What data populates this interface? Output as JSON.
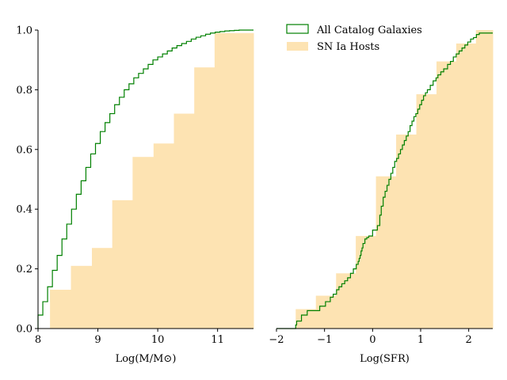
{
  "chart_data": [
    {
      "type": "histogram-cdf",
      "xlabel": "Log(M/M⊙)",
      "ylabel": "",
      "xlim": [
        8.0,
        11.6
      ],
      "ylim": [
        0.0,
        1.0
      ],
      "xticks": [
        "8",
        "9",
        "10",
        "11"
      ],
      "xtick_values": [
        8,
        9,
        10,
        11
      ],
      "yticks": [
        "0.0",
        "0.2",
        "0.4",
        "0.6",
        "0.8",
        "1.0"
      ],
      "ytick_values": [
        0.0,
        0.2,
        0.4,
        0.6,
        0.8,
        1.0
      ],
      "grid": false,
      "series": [
        {
          "name": "SN Ia Hosts",
          "style": "filled-bars",
          "color": "#fde3b2",
          "edges": [
            8.2,
            8.55,
            8.9,
            9.24,
            9.58,
            9.93,
            10.27,
            10.61,
            10.95,
            11.6
          ],
          "values": [
            0.13,
            0.21,
            0.27,
            0.43,
            0.575,
            0.62,
            0.72,
            0.875,
            0.99
          ]
        },
        {
          "name": "All Catalog Galaxies",
          "style": "step",
          "color": "#008000",
          "x": [
            8.0,
            8.08,
            8.16,
            8.24,
            8.32,
            8.4,
            8.48,
            8.56,
            8.64,
            8.72,
            8.8,
            8.88,
            8.96,
            9.04,
            9.12,
            9.2,
            9.28,
            9.36,
            9.44,
            9.52,
            9.6,
            9.68,
            9.76,
            9.84,
            9.92,
            10.0,
            10.08,
            10.16,
            10.24,
            10.32,
            10.4,
            10.48,
            10.56,
            10.64,
            10.72,
            10.8,
            10.88,
            10.96,
            11.04,
            11.12,
            11.2,
            11.28,
            11.36,
            11.44,
            11.52,
            11.6
          ],
          "y": [
            0.045,
            0.09,
            0.14,
            0.195,
            0.245,
            0.3,
            0.35,
            0.4,
            0.45,
            0.495,
            0.54,
            0.585,
            0.62,
            0.66,
            0.69,
            0.72,
            0.75,
            0.775,
            0.8,
            0.82,
            0.84,
            0.855,
            0.87,
            0.885,
            0.9,
            0.91,
            0.92,
            0.93,
            0.94,
            0.948,
            0.955,
            0.962,
            0.97,
            0.976,
            0.981,
            0.986,
            0.99,
            0.993,
            0.995,
            0.997,
            0.998,
            0.999,
            1.0,
            1.0,
            1.0,
            1.0
          ]
        }
      ]
    },
    {
      "type": "histogram-cdf",
      "xlabel": "Log(SFR)",
      "ylabel": "",
      "xlim": [
        -2.0,
        2.5
      ],
      "ylim": [
        0.0,
        1.0
      ],
      "xticks": [
        "−2",
        "−1",
        "0",
        "1",
        "2"
      ],
      "xtick_values": [
        -2,
        -1,
        0,
        1,
        2
      ],
      "grid": false,
      "legend": {
        "position": "top-left",
        "entries": [
          "All Catalog Galaxies",
          "SN Ia Hosts"
        ]
      },
      "series": [
        {
          "name": "SN Ia Hosts",
          "style": "filled-bars",
          "color": "#fde3b2",
          "edges": [
            -1.6,
            -1.18,
            -0.76,
            -0.35,
            0.07,
            0.49,
            0.91,
            1.33,
            1.74,
            2.15,
            2.5
          ],
          "values": [
            0.065,
            0.11,
            0.185,
            0.31,
            0.51,
            0.65,
            0.785,
            0.895,
            0.955,
            1.0
          ]
        },
        {
          "name": "All Catalog Galaxies",
          "style": "step",
          "color": "#008000",
          "x": [
            -2.0,
            -1.6,
            -1.58,
            -1.48,
            -1.36,
            -1.25,
            -1.1,
            -0.98,
            -0.88,
            -0.82,
            -0.75,
            -0.7,
            -0.64,
            -0.58,
            -0.52,
            -0.46,
            -0.4,
            -0.34,
            -0.3,
            -0.28,
            -0.26,
            -0.24,
            -0.22,
            -0.2,
            -0.16,
            -0.12,
            -0.08,
            -0.04,
            0.0,
            0.1,
            0.15,
            0.18,
            0.22,
            0.26,
            0.3,
            0.34,
            0.38,
            0.42,
            0.46,
            0.5,
            0.54,
            0.58,
            0.62,
            0.66,
            0.7,
            0.74,
            0.78,
            0.82,
            0.86,
            0.9,
            0.94,
            0.98,
            1.02,
            1.06,
            1.1,
            1.14,
            1.2,
            1.26,
            1.32,
            1.36,
            1.42,
            1.48,
            1.56,
            1.62,
            1.68,
            1.74,
            1.8,
            1.86,
            1.92,
            1.98,
            2.04,
            2.1,
            2.16,
            2.22,
            2.28,
            2.5
          ],
          "y": [
            0.0,
            0.012,
            0.025,
            0.045,
            0.06,
            0.06,
            0.075,
            0.09,
            0.105,
            0.115,
            0.13,
            0.14,
            0.15,
            0.16,
            0.17,
            0.185,
            0.2,
            0.215,
            0.225,
            0.235,
            0.245,
            0.26,
            0.27,
            0.285,
            0.3,
            0.305,
            0.31,
            0.31,
            0.33,
            0.345,
            0.38,
            0.41,
            0.44,
            0.46,
            0.48,
            0.5,
            0.52,
            0.54,
            0.56,
            0.57,
            0.585,
            0.6,
            0.615,
            0.63,
            0.645,
            0.66,
            0.68,
            0.695,
            0.71,
            0.72,
            0.735,
            0.75,
            0.765,
            0.78,
            0.79,
            0.8,
            0.815,
            0.83,
            0.84,
            0.85,
            0.86,
            0.87,
            0.885,
            0.895,
            0.91,
            0.92,
            0.93,
            0.94,
            0.95,
            0.96,
            0.97,
            0.975,
            0.985,
            0.99,
            0.99,
            0.99
          ]
        }
      ]
    }
  ]
}
